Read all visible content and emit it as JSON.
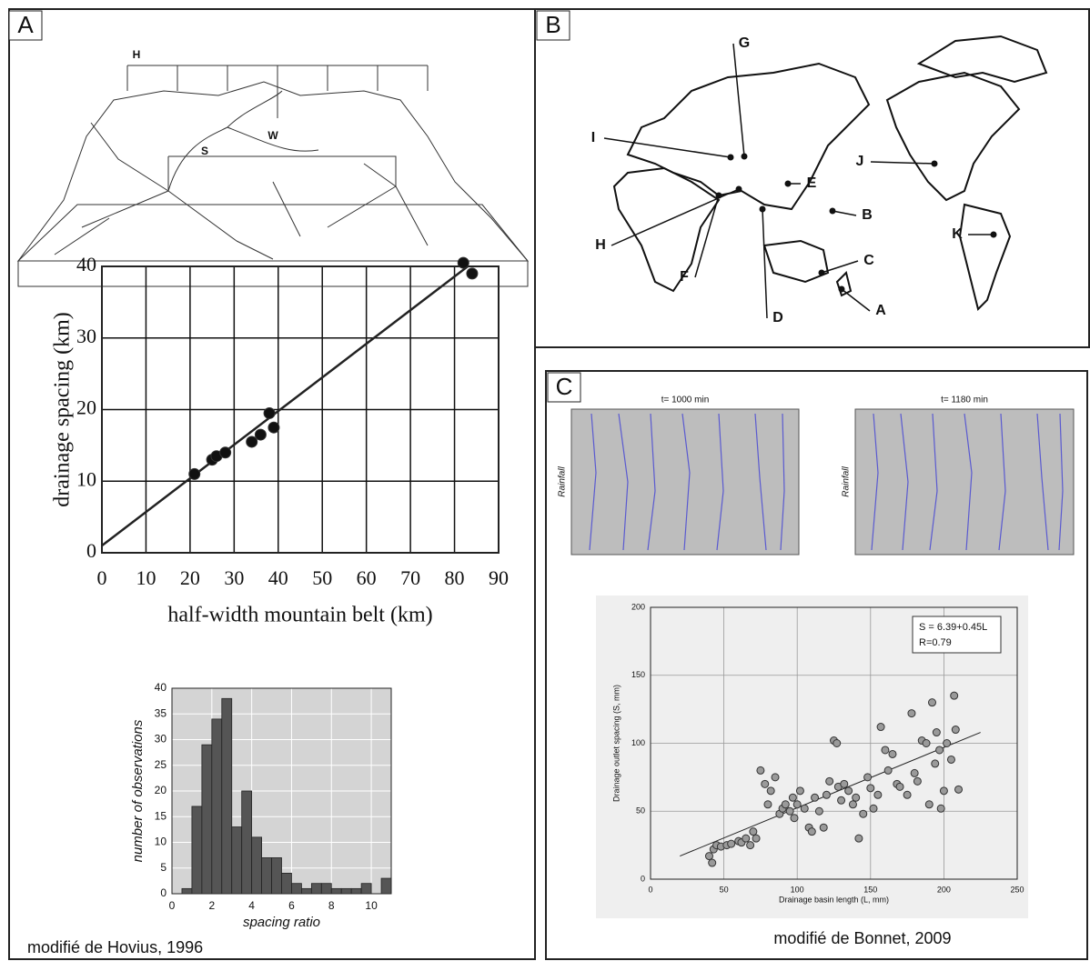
{
  "panels": [
    {
      "label": "A"
    },
    {
      "label": "B"
    },
    {
      "label": "C"
    }
  ],
  "block_diagram": {
    "labels": [
      "H",
      "S",
      "W"
    ]
  },
  "map": {
    "labels": [
      "G",
      "I",
      "E",
      "J",
      "B",
      "K",
      "H",
      "C",
      "F",
      "D",
      "A"
    ]
  },
  "model_frames": [
    {
      "time": "t= 1000 min",
      "axis_label": "Rainfall"
    },
    {
      "time": "t= 1180 min",
      "axis_label": "Rainfall"
    }
  ],
  "sources": [
    "modifié de Hovius, 1996",
    "modifié de Bonnet, 2009"
  ],
  "chart_data": [
    {
      "type": "scatter",
      "xlabel": "half-width mountain belt (km)",
      "ylabel": "drainage spacing (km)",
      "x": [
        21,
        25,
        26,
        28,
        34,
        36,
        38,
        39,
        82,
        84
      ],
      "values": [
        11,
        13,
        13.5,
        14,
        15.5,
        16.5,
        19.5,
        17.5,
        40.5,
        39
      ],
      "color": "#111111",
      "trend_line": {
        "x": [
          0,
          83
        ],
        "y": [
          1,
          40
        ]
      },
      "xlim": [
        0,
        90
      ],
      "ylim": [
        0,
        40
      ],
      "xticks": [
        0,
        10,
        20,
        30,
        40,
        50,
        60,
        70,
        80,
        90
      ],
      "yticks": [
        0,
        10,
        20,
        30,
        40
      ],
      "grid": true
    },
    {
      "type": "histogram",
      "xlabel": "spacing ratio",
      "ylabel": "number of observations",
      "bins": [
        0.5,
        1,
        1.5,
        2,
        2.5,
        3,
        3.5,
        4,
        4.5,
        5,
        5.5,
        6,
        6.5,
        7,
        7.5,
        8,
        8.5,
        9,
        9.5,
        10,
        10.5,
        11
      ],
      "values": [
        1,
        17,
        29,
        34,
        38,
        13,
        20,
        11,
        7,
        7,
        4,
        2,
        1,
        2,
        2,
        1,
        1,
        1,
        2,
        0,
        3
      ],
      "color": "#555555",
      "xlim": [
        0,
        11
      ],
      "ylim": [
        0,
        40
      ],
      "xticks": [
        0,
        2,
        4,
        6,
        8,
        10
      ],
      "yticks": [
        0,
        5,
        10,
        15,
        20,
        25,
        30,
        35,
        40
      ],
      "grid": true
    },
    {
      "type": "scatter",
      "xlabel": "Drainage basin length (L, mm)",
      "ylabel": "Drainage outlet spacing (S, mm)",
      "annotations": [
        "S = 6.39+0.45L",
        "R=0.79"
      ],
      "x": [
        40,
        42,
        43,
        45,
        48,
        52,
        55,
        60,
        62,
        65,
        68,
        70,
        72,
        75,
        78,
        80,
        82,
        85,
        88,
        90,
        92,
        95,
        97,
        98,
        100,
        102,
        105,
        108,
        110,
        112,
        115,
        118,
        120,
        122,
        125,
        127,
        128,
        130,
        132,
        135,
        138,
        140,
        142,
        145,
        148,
        150,
        152,
        155,
        157,
        160,
        162,
        165,
        168,
        170,
        175,
        178,
        180,
        182,
        185,
        188,
        190,
        192,
        194,
        195,
        197,
        198,
        200,
        202,
        205,
        207,
        208,
        210
      ],
      "values": [
        17,
        12,
        22,
        25,
        24,
        25,
        26,
        28,
        27,
        30,
        25,
        35,
        30,
        80,
        70,
        55,
        65,
        75,
        48,
        52,
        55,
        50,
        60,
        45,
        55,
        65,
        52,
        38,
        35,
        60,
        50,
        38,
        62,
        72,
        102,
        100,
        68,
        58,
        70,
        65,
        55,
        60,
        30,
        48,
        75,
        67,
        52,
        62,
        112,
        95,
        80,
        92,
        70,
        68,
        62,
        122,
        78,
        72,
        102,
        100,
        55,
        130,
        85,
        108,
        95,
        52,
        65,
        100,
        88,
        135,
        110,
        66
      ],
      "color": "#9a9a9a",
      "trend_line": {
        "x": [
          20,
          225
        ],
        "y": [
          17,
          108
        ]
      },
      "xlim": [
        0,
        250
      ],
      "ylim": [
        0,
        200
      ],
      "xticks": [
        0,
        50,
        100,
        150,
        200,
        250
      ],
      "yticks": [
        0,
        50,
        100,
        150,
        200
      ],
      "grid": true
    }
  ]
}
